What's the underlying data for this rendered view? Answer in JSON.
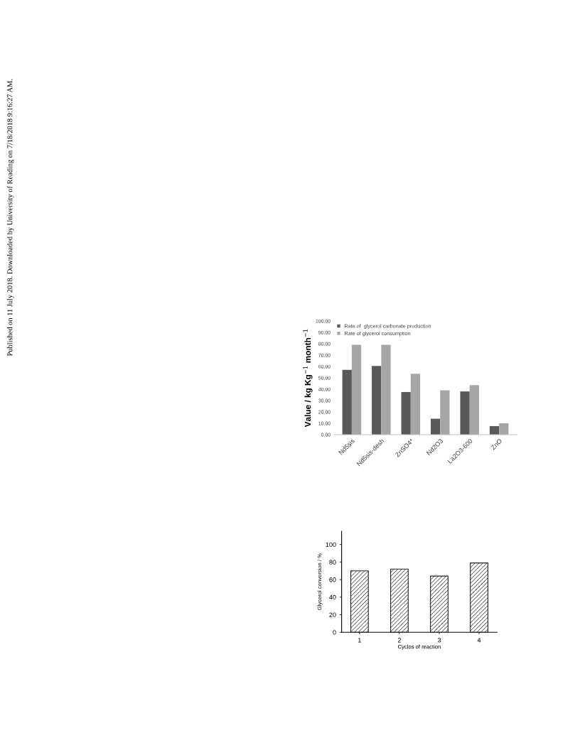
{
  "chart_data": [
    {
      "type": "bar",
      "ylabel": "Value / kg Kg$^{−1}$ month$^{−1}$",
      "categories": [
        "Nd5sis",
        "Nd5sis-desh",
        "ZnSO4*",
        "Nd2O3",
        "La2O3-600",
        "ZnO"
      ],
      "series": [
        {
          "name": "Rate of  glycerol carbonate production",
          "color": "#595959",
          "values": [
            57,
            60.5,
            37.5,
            14,
            38,
            7.5
          ]
        },
        {
          "name": "Rate of glycerol consumption",
          "color": "#a6a6a6",
          "values": [
            79,
            79,
            53.5,
            39,
            43.5,
            10
          ]
        }
      ],
      "ylim": [
        0,
        100
      ],
      "yticks": [
        {
          "value": 0,
          "label": "0,00"
        },
        {
          "value": 10,
          "label": "10,00"
        },
        {
          "value": 20,
          "label": "20,00"
        },
        {
          "value": 30,
          "label": "30,00"
        },
        {
          "value": 40,
          "label": "40,00"
        },
        {
          "value": 50,
          "label": "50,00"
        },
        {
          "value": 60,
          "label": "60,00"
        },
        {
          "value": 70,
          "label": "70,00"
        },
        {
          "value": 80,
          "label": "80,00"
        },
        {
          "value": 90,
          "label": "90,00"
        },
        {
          "value": 100,
          "label": "100,00"
        }
      ],
      "legend": "top left",
      "grid": false,
      "annotations": [
        "Published on 11 July 2018. Downloaded by University of Reading on 7/18/2018 9:16:27 AM."
      ]
    },
    {
      "type": "bar",
      "xlabel": "Cyclos of reaction",
      "ylabel": "Glycerol conversion / %",
      "x": [
        1,
        2,
        3,
        4
      ],
      "values": [
        70,
        72,
        64,
        79
      ],
      "color": "#222222",
      "xlim": [
        0.55,
        4.45
      ],
      "xticks": [
        1,
        2,
        3,
        4
      ],
      "ylim": [
        0,
        115
      ],
      "yticks": [
        0,
        20,
        40,
        60,
        80,
        100
      ],
      "grid": false,
      "legend": false
    }
  ]
}
